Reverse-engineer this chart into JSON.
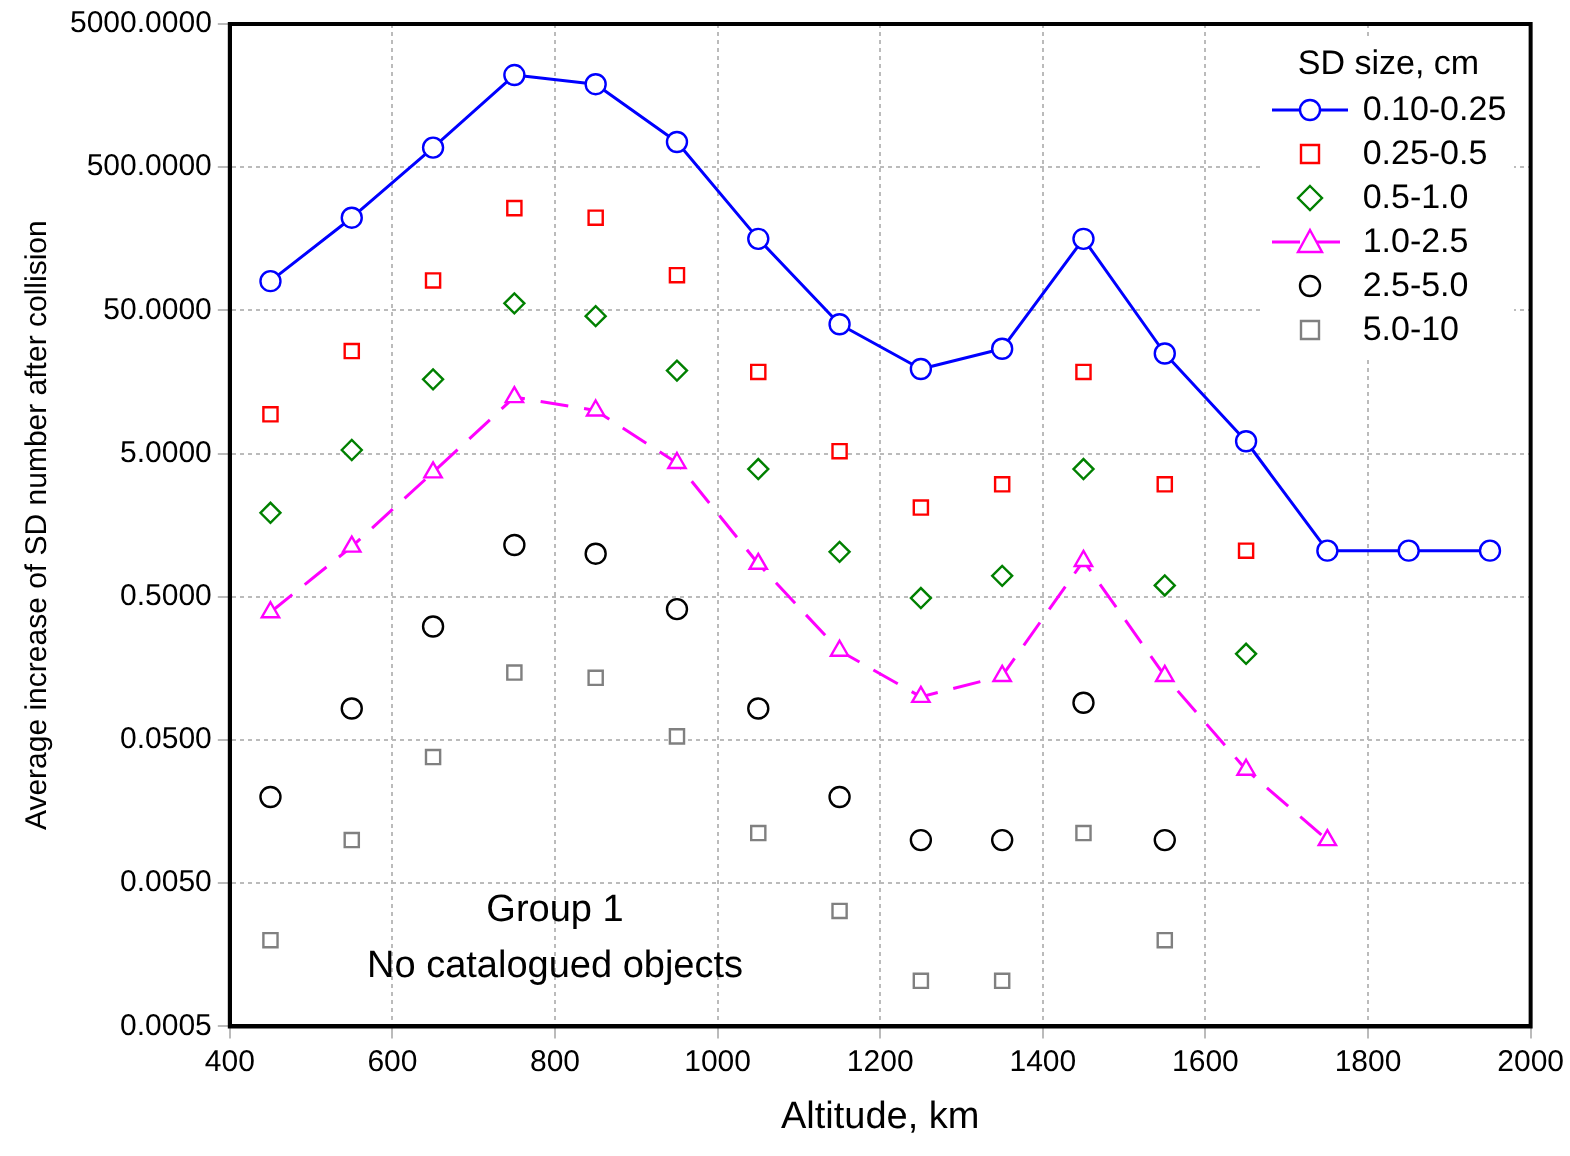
{
  "chart_data": {
    "type": "scatter",
    "xlabel": "Altitude, km",
    "ylabel": "Average increase of SD number after collision",
    "legend_title": "SD size, cm",
    "annotations": [
      "Group 1",
      "No catalogued objects"
    ],
    "x": [
      450,
      550,
      650,
      750,
      850,
      950,
      1050,
      1150,
      1250,
      1350,
      1450,
      1550,
      1650,
      1750,
      1850,
      1950
    ],
    "series": [
      {
        "name": "0.10-0.25",
        "type": "line",
        "color": "#0000ff",
        "marker": "circle",
        "line_style": "solid",
        "values": [
          80,
          222,
          685,
          2200,
          1900,
          750,
          158,
          40,
          19.5,
          27,
          158,
          25,
          6.1,
          1.05,
          1.05,
          1.05
        ]
      },
      {
        "name": "0.25-0.5",
        "color": "#ff0000",
        "marker": "square",
        "values": [
          9.4,
          26,
          81,
          259,
          222,
          88,
          18.6,
          5.2,
          2.1,
          3.05,
          18.6,
          3.05,
          1.05,
          null,
          null,
          null
        ]
      },
      {
        "name": "0.5-1.0",
        "color": "#008000",
        "marker": "diamond",
        "values": [
          1.93,
          5.3,
          16.5,
          56,
          45.6,
          19,
          3.9,
          1.03,
          0.49,
          0.7,
          3.9,
          0.6,
          0.2,
          null,
          null,
          null
        ]
      },
      {
        "name": "1.0-2.5",
        "type": "line",
        "color": "#ff00ff",
        "marker": "triangle",
        "line_style": "dashed",
        "values": [
          0.39,
          1.12,
          3.7,
          12.4,
          10,
          4.3,
          0.85,
          0.21,
          0.1,
          0.14,
          0.89,
          0.14,
          0.031,
          0.01,
          null,
          null
        ]
      },
      {
        "name": "2.5-5.0",
        "color": "#000000",
        "marker": "circle",
        "values": [
          0.02,
          0.083,
          0.31,
          1.15,
          1.0,
          0.41,
          0.083,
          0.02,
          0.01,
          0.01,
          0.091,
          0.01,
          null,
          null,
          null,
          null
        ]
      },
      {
        "name": "5.0-10",
        "color": "#808080",
        "marker": "square",
        "values": [
          0.002,
          0.01,
          0.038,
          0.148,
          0.136,
          0.053,
          0.0112,
          0.0032,
          0.00104,
          0.00104,
          0.0112,
          0.002,
          null,
          null,
          null,
          null
        ]
      }
    ],
    "xlim": [
      400,
      2000
    ],
    "xticks": [
      400,
      600,
      800,
      1000,
      1200,
      1400,
      1600,
      1800,
      2000
    ],
    "log": "y",
    "ylim": [
      0.0005,
      5000
    ],
    "yticks": [
      {
        "value": 0.0005,
        "label": "0.0005"
      },
      {
        "value": 0.005,
        "label": "0.0050"
      },
      {
        "value": 0.05,
        "label": "0.0500"
      },
      {
        "value": 0.5,
        "label": "0.5000"
      },
      {
        "value": 5,
        "label": "5.0000"
      },
      {
        "value": 50,
        "label": "50.0000"
      },
      {
        "value": 500,
        "label": "500.0000"
      },
      {
        "value": 5000,
        "label": "5000.0000"
      }
    ],
    "grid": true,
    "legend": "top right"
  }
}
